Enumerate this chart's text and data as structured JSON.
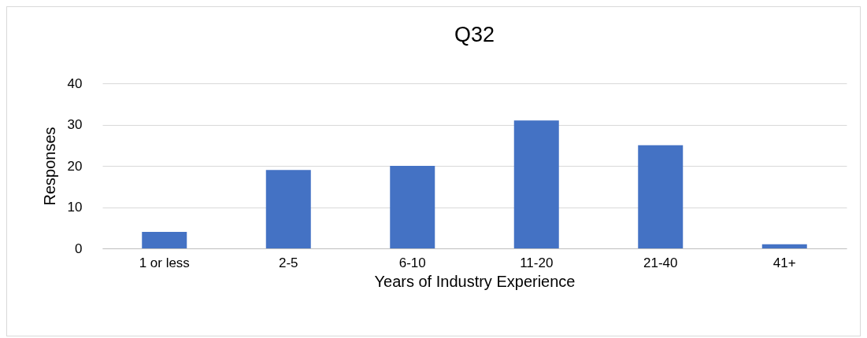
{
  "chart_data": {
    "type": "bar",
    "title": "Q32",
    "xlabel": "Years of Industry Experience",
    "ylabel": "Responses",
    "categories": [
      "1 or less",
      "2-5",
      "6-10",
      "11-20",
      "21-40",
      "41+"
    ],
    "values": [
      4,
      19,
      20,
      31,
      25,
      1
    ],
    "color": "#4472c4",
    "ylim": [
      0,
      40
    ],
    "yticks": [
      0,
      10,
      20,
      30,
      40
    ],
    "grid": "y"
  }
}
